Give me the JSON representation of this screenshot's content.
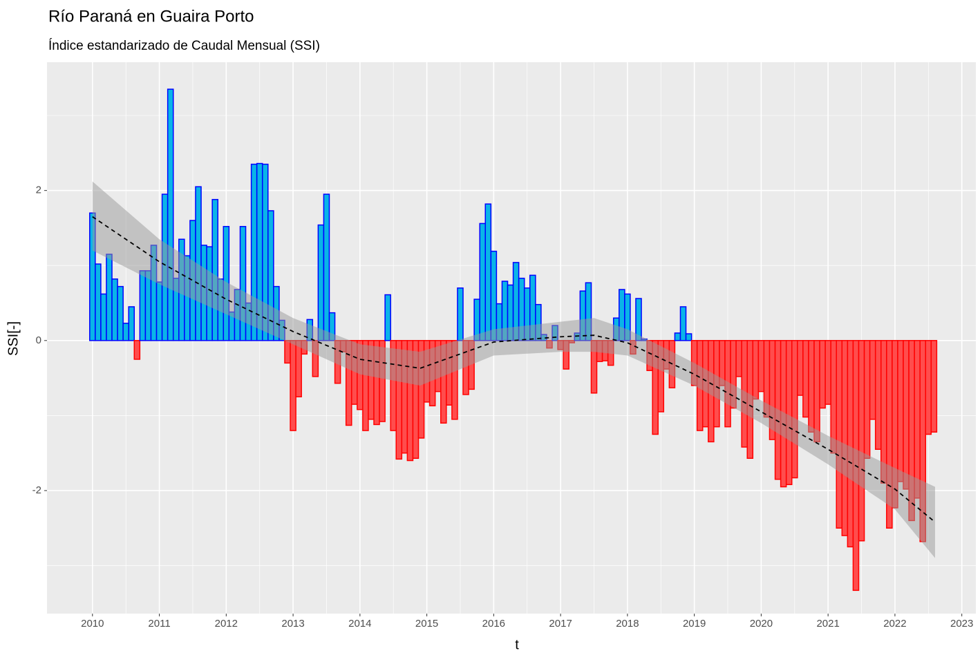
{
  "chart_data": {
    "type": "bar",
    "title": "Río Paraná en Guaira Porto",
    "subtitle": "Índice estandarizado de Caudal Mensual (SSI)",
    "x_label": "t",
    "y_label": "SSI[-]",
    "xlim": [
      2009.32,
      2023.21
    ],
    "xticks": [
      2010,
      2011,
      2012,
      2013,
      2014,
      2015,
      2016,
      2017,
      2018,
      2019,
      2020,
      2021,
      2022,
      2023
    ],
    "ylim": [
      -3.64,
      3.71
    ],
    "yticks": [
      -2,
      0,
      2
    ],
    "grid": true,
    "positive_color": "#0ab4e8",
    "positive_edge": "#0000ff",
    "negative_color": "#ff4d4d",
    "negative_edge": "#ff0000",
    "x": [
      "2010-01",
      "2010-02",
      "2010-03",
      "2010-04",
      "2010-05",
      "2010-06",
      "2010-07",
      "2010-08",
      "2010-09",
      "2010-10",
      "2010-11",
      "2010-12",
      "2011-01",
      "2011-02",
      "2011-03",
      "2011-04",
      "2011-05",
      "2011-06",
      "2011-07",
      "2011-08",
      "2011-09",
      "2011-10",
      "2011-11",
      "2011-12",
      "2012-01",
      "2012-02",
      "2012-03",
      "2012-04",
      "2012-05",
      "2012-06",
      "2012-07",
      "2012-08",
      "2012-09",
      "2012-10",
      "2012-11",
      "2012-12",
      "2013-01",
      "2013-02",
      "2013-03",
      "2013-04",
      "2013-05",
      "2013-06",
      "2013-07",
      "2013-08",
      "2013-09",
      "2013-10",
      "2013-11",
      "2013-12",
      "2014-01",
      "2014-02",
      "2014-03",
      "2014-04",
      "2014-05",
      "2014-06",
      "2014-07",
      "2014-08",
      "2014-09",
      "2014-10",
      "2014-11",
      "2014-12",
      "2015-01",
      "2015-02",
      "2015-03",
      "2015-04",
      "2015-05",
      "2015-06",
      "2015-07",
      "2015-08",
      "2015-09",
      "2015-10",
      "2015-11",
      "2015-12",
      "2016-01",
      "2016-02",
      "2016-03",
      "2016-04",
      "2016-05",
      "2016-06",
      "2016-07",
      "2016-08",
      "2016-09",
      "2016-10",
      "2016-11",
      "2016-12",
      "2017-01",
      "2017-02",
      "2017-03",
      "2017-04",
      "2017-05",
      "2017-06",
      "2017-07",
      "2017-08",
      "2017-09",
      "2017-10",
      "2017-11",
      "2017-12",
      "2018-01",
      "2018-02",
      "2018-03",
      "2018-04",
      "2018-05",
      "2018-06",
      "2018-07",
      "2018-08",
      "2018-09",
      "2018-10",
      "2018-11",
      "2018-12",
      "2019-01",
      "2019-02",
      "2019-03",
      "2019-04",
      "2019-05",
      "2019-06",
      "2019-07",
      "2019-08",
      "2019-09",
      "2019-10",
      "2019-11",
      "2019-12",
      "2020-01",
      "2020-02",
      "2020-03",
      "2020-04",
      "2020-05",
      "2020-06",
      "2020-07",
      "2020-08",
      "2020-09",
      "2020-10",
      "2020-11",
      "2020-12",
      "2021-01",
      "2021-02",
      "2021-03",
      "2021-04",
      "2021-05",
      "2021-06",
      "2021-07",
      "2021-08",
      "2021-09",
      "2021-10",
      "2021-11",
      "2021-12",
      "2022-01",
      "2022-02",
      "2022-03",
      "2022-04",
      "2022-05",
      "2022-06",
      "2022-07",
      "2022-08"
    ],
    "values": [
      1.7,
      1.02,
      0.62,
      1.15,
      0.82,
      0.72,
      0.23,
      0.45,
      -0.25,
      0.93,
      0.93,
      1.27,
      0.78,
      1.95,
      3.35,
      0.83,
      1.35,
      1.13,
      1.6,
      2.05,
      1.27,
      1.25,
      1.88,
      0.82,
      1.52,
      0.38,
      0.68,
      1.52,
      0.5,
      2.35,
      2.36,
      2.35,
      1.73,
      0.72,
      0.27,
      -0.3,
      -1.2,
      -0.75,
      -0.18,
      0.28,
      -0.48,
      1.54,
      1.95,
      0.37,
      -0.57,
      -0.15,
      -1.13,
      -0.85,
      -0.92,
      -1.2,
      -1.05,
      -1.12,
      -1.08,
      0.61,
      -1.2,
      -1.58,
      -1.5,
      -1.6,
      -1.57,
      -1.3,
      -0.82,
      -0.87,
      -0.68,
      -1.1,
      -0.86,
      -1.05,
      0.7,
      -0.72,
      -0.65,
      0.55,
      1.56,
      1.82,
      1.19,
      0.49,
      0.79,
      0.74,
      1.04,
      0.83,
      0.7,
      0.87,
      0.48,
      0.08,
      -0.1,
      0.2,
      -0.12,
      -0.38,
      -0.03,
      0.1,
      0.66,
      0.77,
      -0.7,
      -0.28,
      -0.27,
      -0.33,
      0.3,
      0.68,
      0.62,
      -0.18,
      0.56,
      0.02,
      -0.4,
      -1.25,
      -0.95,
      -0.38,
      -0.63,
      0.1,
      0.45,
      0.09,
      -0.6,
      -1.2,
      -1.15,
      -1.35,
      -1.15,
      -0.6,
      -1.15,
      -0.9,
      -0.48,
      -1.42,
      -1.57,
      -0.78,
      -0.68,
      -1.02,
      -1.32,
      -1.85,
      -1.95,
      -1.92,
      -1.83,
      -0.73,
      -1.02,
      -1.22,
      -1.35,
      -0.9,
      -0.85,
      -1.5,
      -2.5,
      -2.6,
      -2.75,
      -3.33,
      -2.67,
      -1.57,
      -1.05,
      -1.45,
      -1.9,
      -2.5,
      -2.23,
      -1.88,
      -1.98,
      -2.4,
      -2.1,
      -2.68,
      -1.25,
      -1.22
    ],
    "trend": {
      "x": [
        2010.0,
        2011.0,
        2012.0,
        2013.0,
        2014.0,
        2014.9,
        2016.0,
        2017.0,
        2017.5,
        2018.0,
        2019.0,
        2020.0,
        2021.0,
        2022.0,
        2022.6
      ],
      "values": [
        1.65,
        1.05,
        0.55,
        0.12,
        -0.25,
        -0.37,
        -0.02,
        0.05,
        0.07,
        -0.03,
        -0.45,
        -0.95,
        -1.45,
        -1.98,
        -2.42
      ],
      "lower": [
        1.2,
        0.75,
        0.35,
        -0.05,
        -0.45,
        -0.6,
        -0.2,
        -0.15,
        -0.15,
        -0.2,
        -0.6,
        -1.1,
        -1.65,
        -2.25,
        -2.9
      ],
      "upper": [
        2.12,
        1.35,
        0.78,
        0.3,
        -0.05,
        -0.15,
        0.15,
        0.25,
        0.3,
        0.15,
        -0.3,
        -0.8,
        -1.27,
        -1.7,
        -1.95
      ],
      "color": "#000000",
      "band_color": "#999999"
    }
  }
}
